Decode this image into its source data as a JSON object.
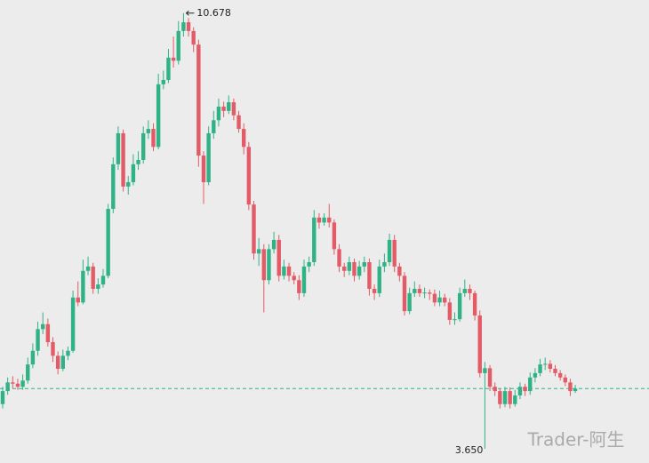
{
  "chart_data": {
    "type": "candlestick",
    "up_color": "#2fb386",
    "down_color": "#e35b66",
    "ylim": [
      3.42,
      10.89
    ],
    "candles": [
      [
        4.37,
        4.65,
        4.3,
        4.58
      ],
      [
        4.58,
        4.8,
        4.52,
        4.72
      ],
      [
        4.72,
        4.82,
        4.62,
        4.7
      ],
      [
        4.7,
        4.78,
        4.6,
        4.65
      ],
      [
        4.65,
        4.85,
        4.6,
        4.75
      ],
      [
        4.75,
        5.12,
        4.7,
        5.01
      ],
      [
        5.01,
        5.35,
        4.95,
        5.23
      ],
      [
        5.23,
        5.7,
        5.15,
        5.58
      ],
      [
        5.58,
        5.85,
        5.5,
        5.66
      ],
      [
        5.66,
        5.75,
        5.3,
        5.37
      ],
      [
        5.37,
        5.45,
        5.05,
        5.15
      ],
      [
        5.15,
        5.22,
        4.85,
        4.94
      ],
      [
        4.94,
        5.25,
        4.9,
        5.15
      ],
      [
        5.15,
        5.3,
        5.08,
        5.23
      ],
      [
        5.23,
        6.2,
        5.2,
        6.09
      ],
      [
        6.09,
        6.35,
        5.95,
        6.01
      ],
      [
        6.01,
        6.7,
        5.98,
        6.52
      ],
      [
        6.52,
        6.75,
        6.45,
        6.59
      ],
      [
        6.59,
        6.65,
        6.15,
        6.23
      ],
      [
        6.23,
        6.4,
        6.15,
        6.3
      ],
      [
        6.3,
        6.55,
        6.25,
        6.44
      ],
      [
        6.44,
        7.6,
        6.4,
        7.52
      ],
      [
        7.52,
        8.35,
        7.45,
        8.24
      ],
      [
        8.24,
        8.85,
        8.15,
        8.74
      ],
      [
        8.74,
        8.8,
        7.8,
        7.88
      ],
      [
        7.88,
        8.05,
        7.75,
        7.95
      ],
      [
        7.95,
        8.4,
        7.9,
        8.24
      ],
      [
        8.24,
        8.45,
        8.15,
        8.31
      ],
      [
        8.31,
        8.85,
        8.25,
        8.74
      ],
      [
        8.74,
        8.95,
        8.65,
        8.81
      ],
      [
        8.81,
        8.9,
        8.45,
        8.52
      ],
      [
        8.52,
        9.7,
        8.48,
        9.53
      ],
      [
        9.53,
        9.75,
        9.45,
        9.6
      ],
      [
        9.6,
        10.1,
        9.55,
        9.96
      ],
      [
        9.96,
        10.3,
        9.8,
        9.91
      ],
      [
        9.91,
        10.55,
        9.85,
        10.39
      ],
      [
        10.39,
        10.678,
        10.3,
        10.53
      ],
      [
        10.53,
        10.6,
        10.3,
        10.39
      ],
      [
        10.39,
        10.45,
        10.05,
        10.17
      ],
      [
        10.17,
        10.25,
        8.2,
        8.38
      ],
      [
        8.38,
        8.45,
        7.6,
        7.95
      ],
      [
        7.95,
        8.85,
        7.9,
        8.74
      ],
      [
        8.74,
        9.1,
        8.65,
        8.95
      ],
      [
        8.95,
        9.3,
        8.85,
        9.17
      ],
      [
        9.17,
        9.25,
        9.0,
        9.1
      ],
      [
        9.1,
        9.35,
        9.05,
        9.24
      ],
      [
        9.24,
        9.3,
        8.95,
        9.03
      ],
      [
        9.03,
        9.1,
        8.75,
        8.81
      ],
      [
        8.81,
        8.9,
        8.4,
        8.52
      ],
      [
        8.52,
        8.6,
        7.5,
        7.59
      ],
      [
        7.59,
        7.65,
        6.7,
        6.8
      ],
      [
        6.8,
        7.05,
        6.6,
        6.87
      ],
      [
        6.87,
        6.95,
        5.85,
        6.37
      ],
      [
        6.37,
        6.95,
        6.3,
        6.87
      ],
      [
        6.87,
        7.15,
        6.8,
        7.02
      ],
      [
        7.02,
        7.1,
        6.35,
        6.44
      ],
      [
        6.44,
        6.7,
        6.38,
        6.59
      ],
      [
        6.59,
        6.65,
        6.35,
        6.44
      ],
      [
        6.44,
        6.5,
        6.3,
        6.37
      ],
      [
        6.37,
        6.45,
        6.05,
        6.16
      ],
      [
        6.16,
        6.7,
        6.1,
        6.59
      ],
      [
        6.59,
        6.75,
        6.5,
        6.66
      ],
      [
        6.66,
        7.5,
        6.6,
        7.38
      ],
      [
        7.38,
        7.45,
        7.2,
        7.3
      ],
      [
        7.3,
        7.45,
        7.25,
        7.38
      ],
      [
        7.38,
        7.6,
        7.22,
        7.3
      ],
      [
        7.3,
        7.35,
        6.78,
        6.87
      ],
      [
        6.87,
        6.95,
        6.5,
        6.59
      ],
      [
        6.59,
        6.65,
        6.42,
        6.52
      ],
      [
        6.52,
        6.75,
        6.45,
        6.66
      ],
      [
        6.66,
        6.72,
        6.35,
        6.44
      ],
      [
        6.44,
        6.68,
        6.38,
        6.59
      ],
      [
        6.59,
        6.75,
        6.5,
        6.66
      ],
      [
        6.66,
        6.72,
        6.12,
        6.23
      ],
      [
        6.23,
        6.3,
        6.05,
        6.16
      ],
      [
        6.16,
        6.7,
        6.1,
        6.59
      ],
      [
        6.59,
        6.8,
        6.5,
        6.66
      ],
      [
        6.66,
        7.12,
        6.6,
        7.02
      ],
      [
        7.02,
        7.1,
        6.5,
        6.59
      ],
      [
        6.59,
        6.65,
        6.35,
        6.44
      ],
      [
        6.44,
        6.5,
        5.8,
        5.87
      ],
      [
        5.87,
        6.25,
        5.82,
        6.16
      ],
      [
        6.16,
        6.35,
        6.1,
        6.23
      ],
      [
        6.23,
        6.3,
        6.1,
        6.16
      ],
      [
        6.16,
        6.25,
        6.08,
        6.17
      ],
      [
        6.17,
        6.22,
        6.05,
        6.15
      ],
      [
        6.15,
        6.22,
        5.95,
        6.01
      ],
      [
        6.01,
        6.2,
        5.95,
        6.09
      ],
      [
        6.09,
        6.15,
        5.95,
        6.01
      ],
      [
        6.01,
        6.08,
        5.65,
        5.73
      ],
      [
        5.73,
        5.85,
        5.65,
        5.74
      ],
      [
        5.74,
        6.25,
        5.7,
        6.16
      ],
      [
        6.16,
        6.38,
        6.1,
        6.23
      ],
      [
        6.23,
        6.3,
        6.05,
        6.16
      ],
      [
        6.16,
        6.2,
        5.72,
        5.8
      ],
      [
        5.8,
        5.88,
        4.8,
        4.87
      ],
      [
        4.87,
        5.05,
        3.65,
        4.95
      ],
      [
        4.95,
        5.0,
        4.58,
        4.65
      ],
      [
        4.65,
        4.72,
        4.5,
        4.58
      ],
      [
        4.58,
        4.62,
        4.3,
        4.37
      ],
      [
        4.37,
        4.65,
        4.32,
        4.58
      ],
      [
        4.58,
        4.64,
        4.3,
        4.37
      ],
      [
        4.37,
        4.6,
        4.33,
        4.51
      ],
      [
        4.51,
        4.72,
        4.45,
        4.65
      ],
      [
        4.65,
        4.7,
        4.5,
        4.58
      ],
      [
        4.58,
        4.88,
        4.52,
        4.8
      ],
      [
        4.8,
        4.95,
        4.72,
        4.87
      ],
      [
        4.87,
        5.1,
        4.82,
        5.01
      ],
      [
        5.01,
        5.12,
        4.92,
        5.02
      ],
      [
        5.02,
        5.08,
        4.88,
        4.94
      ],
      [
        4.94,
        5.0,
        4.82,
        4.87
      ],
      [
        4.87,
        4.92,
        4.75,
        4.8
      ],
      [
        4.8,
        4.85,
        4.66,
        4.72
      ],
      [
        4.72,
        4.78,
        4.5,
        4.58
      ],
      [
        4.58,
        4.68,
        4.55,
        4.62
      ]
    ],
    "annotations": [
      {
        "value": 10.678,
        "label": "10.678"
      },
      {
        "value": 3.65,
        "label": "3.650"
      }
    ],
    "watermark": "Trader-阿生"
  }
}
